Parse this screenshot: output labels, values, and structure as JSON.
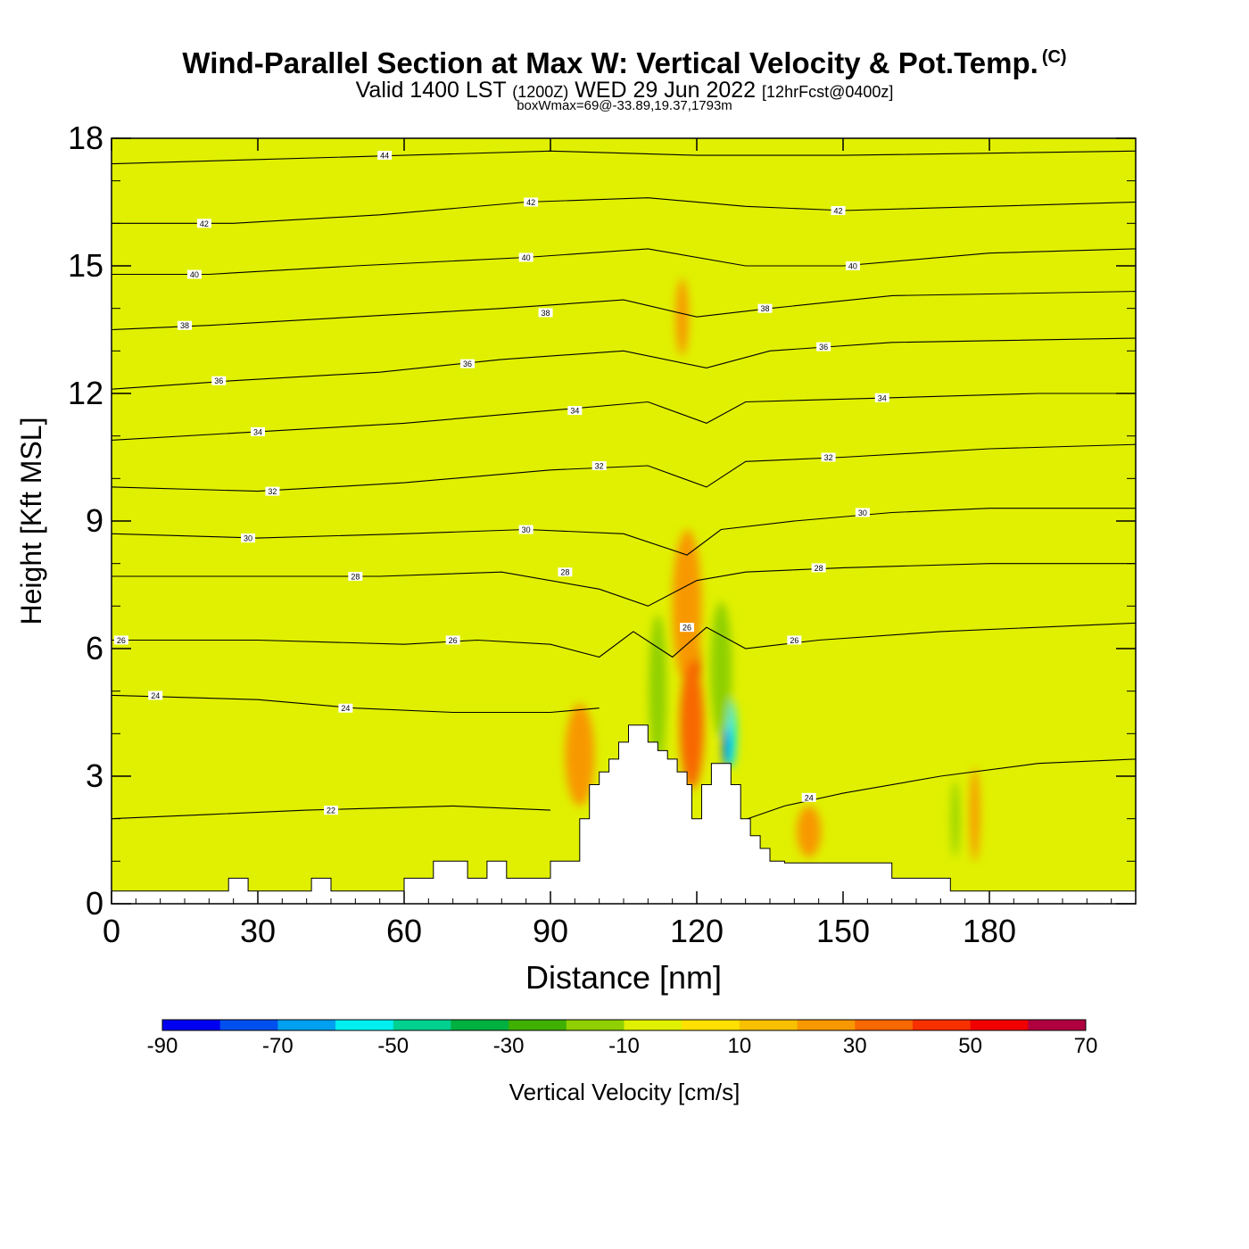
{
  "header": {
    "title": "Wind-Parallel Section at Max W: Vertical Velocity & Pot.Temp.",
    "copyright": "(C)",
    "valid_prefix": "Valid 1400 LST",
    "valid_utc": "(1200Z)",
    "valid_date": "WED 29 Jun 2022",
    "forecast": "[12hrFcst@0400z]",
    "box_info": "boxWmax=69@-33.89,19.37,1793m"
  },
  "colors": {
    "background": "#e0f000",
    "terrain": "#ffffff",
    "contour": "#000000"
  },
  "chart_data": {
    "type": "heatmap",
    "xlabel": "Distance [nm]",
    "ylabel": "Height [Kft MSL]",
    "xlim": [
      0,
      210
    ],
    "ylim": [
      0,
      18
    ],
    "xticks": [
      0,
      30,
      60,
      90,
      120,
      150,
      180
    ],
    "yticks": [
      0,
      3,
      6,
      9,
      12,
      15,
      18
    ],
    "legend": {
      "label": "Vertical Velocity [cm/s]",
      "levels": [
        -90,
        -80,
        -70,
        -60,
        -50,
        -40,
        -30,
        -20,
        -10,
        0,
        10,
        20,
        30,
        40,
        50,
        60,
        70
      ],
      "tick_labels": [
        "-90",
        "-70",
        "-50",
        "-30",
        "-10",
        "10",
        "30",
        "50",
        "70"
      ],
      "colors": [
        "#0000f0",
        "#0050f0",
        "#00a0f0",
        "#00f0f0",
        "#00d090",
        "#00b040",
        "#40b000",
        "#90d000",
        "#e0f000",
        "#ffe000",
        "#f8c000",
        "#f89800",
        "#f86800",
        "#f83000",
        "#f00000",
        "#b00040"
      ]
    },
    "terrain_kft": [
      [
        0,
        0.3
      ],
      [
        24,
        0.3
      ],
      [
        24,
        0.6
      ],
      [
        28,
        0.6
      ],
      [
        28,
        0.3
      ],
      [
        41,
        0.3
      ],
      [
        41,
        0.6
      ],
      [
        45,
        0.6
      ],
      [
        45,
        0.3
      ],
      [
        60,
        0.3
      ],
      [
        60,
        0.6
      ],
      [
        66,
        0.6
      ],
      [
        66,
        1.0
      ],
      [
        73,
        1.0
      ],
      [
        73,
        0.6
      ],
      [
        77,
        0.6
      ],
      [
        77,
        1.0
      ],
      [
        81,
        1.0
      ],
      [
        81,
        0.6
      ],
      [
        90,
        0.6
      ],
      [
        90,
        1.0
      ],
      [
        96,
        1.0
      ],
      [
        96,
        2.0
      ],
      [
        98,
        2.0
      ],
      [
        98,
        2.8
      ],
      [
        100,
        2.8
      ],
      [
        100,
        3.1
      ],
      [
        102,
        3.1
      ],
      [
        102,
        3.4
      ],
      [
        104,
        3.4
      ],
      [
        104,
        3.8
      ],
      [
        106,
        3.8
      ],
      [
        106,
        4.2
      ],
      [
        110,
        4.2
      ],
      [
        110,
        3.8
      ],
      [
        112,
        3.8
      ],
      [
        112,
        3.6
      ],
      [
        114,
        3.6
      ],
      [
        114,
        3.4
      ],
      [
        116,
        3.4
      ],
      [
        116,
        3.1
      ],
      [
        118,
        3.1
      ],
      [
        118,
        2.8
      ],
      [
        119,
        2.8
      ],
      [
        119,
        2.0
      ],
      [
        121,
        2.0
      ],
      [
        121,
        2.8
      ],
      [
        123,
        2.8
      ],
      [
        123,
        3.3
      ],
      [
        127,
        3.3
      ],
      [
        127,
        2.8
      ],
      [
        129,
        2.8
      ],
      [
        129,
        2.0
      ],
      [
        131,
        2.0
      ],
      [
        131,
        1.6
      ],
      [
        133,
        1.6
      ],
      [
        133,
        1.3
      ],
      [
        135,
        1.3
      ],
      [
        135,
        1.0
      ],
      [
        138,
        1.0
      ],
      [
        138,
        0.96
      ],
      [
        160,
        0.96
      ],
      [
        160,
        0.6
      ],
      [
        172,
        0.6
      ],
      [
        172,
        0.3
      ],
      [
        210,
        0.3
      ]
    ],
    "theta_contours": [
      {
        "label": "22",
        "pts": [
          [
            0,
            2.0
          ],
          [
            20,
            2.1
          ],
          [
            40,
            2.2
          ],
          [
            70,
            2.3
          ],
          [
            90,
            2.2
          ]
        ],
        "labels_at": [
          [
            45,
            2.2
          ]
        ]
      },
      {
        "label": "24",
        "pts": [
          [
            0,
            4.9
          ],
          [
            30,
            4.8
          ],
          [
            50,
            4.6
          ],
          [
            70,
            4.5
          ],
          [
            90,
            4.5
          ],
          [
            100,
            4.6
          ]
        ],
        "labels_at": [
          [
            9,
            4.9
          ],
          [
            48,
            4.6
          ]
        ]
      },
      {
        "label": "24",
        "pts": [
          [
            128,
            1.9
          ],
          [
            138,
            2.3
          ],
          [
            150,
            2.6
          ],
          [
            170,
            3.0
          ],
          [
            190,
            3.3
          ],
          [
            210,
            3.4
          ]
        ],
        "labels_at": [
          [
            143,
            2.5
          ]
        ]
      },
      {
        "label": "26",
        "pts": [
          [
            0,
            6.2
          ],
          [
            30,
            6.2
          ],
          [
            60,
            6.1
          ],
          [
            75,
            6.2
          ],
          [
            90,
            6.1
          ],
          [
            100,
            5.8
          ],
          [
            107,
            6.4
          ],
          [
            115,
            5.8
          ],
          [
            122,
            6.5
          ],
          [
            130,
            6.0
          ],
          [
            145,
            6.2
          ],
          [
            170,
            6.4
          ],
          [
            210,
            6.6
          ]
        ],
        "labels_at": [
          [
            2,
            6.2
          ],
          [
            70,
            6.2
          ],
          [
            118,
            6.5
          ],
          [
            140,
            6.2
          ]
        ]
      },
      {
        "label": "28",
        "pts": [
          [
            0,
            7.7
          ],
          [
            30,
            7.7
          ],
          [
            55,
            7.7
          ],
          [
            80,
            7.8
          ],
          [
            100,
            7.4
          ],
          [
            110,
            7.0
          ],
          [
            120,
            7.6
          ],
          [
            130,
            7.8
          ],
          [
            150,
            7.9
          ],
          [
            180,
            8.0
          ],
          [
            210,
            8.0
          ]
        ],
        "labels_at": [
          [
            50,
            7.7
          ],
          [
            93,
            7.8
          ],
          [
            145,
            7.9
          ]
        ]
      },
      {
        "label": "30",
        "pts": [
          [
            0,
            8.7
          ],
          [
            30,
            8.6
          ],
          [
            60,
            8.7
          ],
          [
            85,
            8.8
          ],
          [
            105,
            8.7
          ],
          [
            118,
            8.2
          ],
          [
            125,
            8.8
          ],
          [
            140,
            9.0
          ],
          [
            160,
            9.2
          ],
          [
            180,
            9.3
          ],
          [
            210,
            9.3
          ]
        ],
        "labels_at": [
          [
            28,
            8.6
          ],
          [
            85,
            8.8
          ],
          [
            154,
            9.2
          ]
        ]
      },
      {
        "label": "32",
        "pts": [
          [
            0,
            9.8
          ],
          [
            30,
            9.7
          ],
          [
            60,
            9.9
          ],
          [
            90,
            10.2
          ],
          [
            110,
            10.3
          ],
          [
            122,
            9.8
          ],
          [
            130,
            10.4
          ],
          [
            150,
            10.5
          ],
          [
            180,
            10.7
          ],
          [
            210,
            10.8
          ]
        ],
        "labels_at": [
          [
            33,
            9.7
          ],
          [
            100,
            10.3
          ],
          [
            147,
            10.5
          ]
        ]
      },
      {
        "label": "34",
        "pts": [
          [
            0,
            10.9
          ],
          [
            30,
            11.1
          ],
          [
            60,
            11.3
          ],
          [
            90,
            11.6
          ],
          [
            110,
            11.8
          ],
          [
            122,
            11.3
          ],
          [
            130,
            11.8
          ],
          [
            160,
            11.9
          ],
          [
            190,
            12.0
          ],
          [
            210,
            12.0
          ]
        ],
        "labels_at": [
          [
            30,
            11.1
          ],
          [
            95,
            11.6
          ],
          [
            158,
            11.9
          ]
        ]
      },
      {
        "label": "36",
        "pts": [
          [
            0,
            12.1
          ],
          [
            25,
            12.3
          ],
          [
            55,
            12.5
          ],
          [
            80,
            12.8
          ],
          [
            105,
            13.0
          ],
          [
            122,
            12.6
          ],
          [
            135,
            13.0
          ],
          [
            160,
            13.2
          ],
          [
            210,
            13.3
          ]
        ],
        "labels_at": [
          [
            22,
            12.3
          ],
          [
            73,
            12.7
          ],
          [
            146,
            13.1
          ]
        ]
      },
      {
        "label": "38",
        "pts": [
          [
            0,
            13.5
          ],
          [
            20,
            13.6
          ],
          [
            50,
            13.8
          ],
          [
            80,
            14.0
          ],
          [
            105,
            14.2
          ],
          [
            120,
            13.8
          ],
          [
            135,
            14.0
          ],
          [
            160,
            14.3
          ],
          [
            210,
            14.4
          ]
        ],
        "labels_at": [
          [
            15,
            13.6
          ],
          [
            89,
            13.9
          ],
          [
            134,
            14.0
          ]
        ]
      },
      {
        "label": "40",
        "pts": [
          [
            0,
            14.8
          ],
          [
            20,
            14.8
          ],
          [
            50,
            15.0
          ],
          [
            85,
            15.2
          ],
          [
            110,
            15.4
          ],
          [
            130,
            15.0
          ],
          [
            150,
            15.0
          ],
          [
            180,
            15.3
          ],
          [
            210,
            15.4
          ]
        ],
        "labels_at": [
          [
            17,
            14.8
          ],
          [
            85,
            15.2
          ],
          [
            152,
            15.0
          ]
        ]
      },
      {
        "label": "42",
        "pts": [
          [
            0,
            16.0
          ],
          [
            25,
            16.0
          ],
          [
            55,
            16.2
          ],
          [
            85,
            16.5
          ],
          [
            110,
            16.6
          ],
          [
            130,
            16.4
          ],
          [
            150,
            16.3
          ],
          [
            180,
            16.4
          ],
          [
            210,
            16.5
          ]
        ],
        "labels_at": [
          [
            19,
            16.0
          ],
          [
            86,
            16.5
          ],
          [
            149,
            16.3
          ]
        ]
      },
      {
        "label": "44",
        "pts": [
          [
            0,
            17.4
          ],
          [
            30,
            17.5
          ],
          [
            60,
            17.6
          ],
          [
            90,
            17.7
          ],
          [
            120,
            17.6
          ],
          [
            150,
            17.6
          ],
          [
            210,
            17.7
          ]
        ],
        "labels_at": [
          [
            56,
            17.6
          ]
        ]
      }
    ],
    "velocity_features": [
      {
        "x": 119,
        "y": 5.4,
        "rx": 1.8,
        "ry": 1.4,
        "value": 50
      },
      {
        "x": 118,
        "y": 6.6,
        "rx": 2.0,
        "ry": 1.1,
        "value": 40
      },
      {
        "x": 117,
        "y": 13.8,
        "rx": 1.3,
        "ry": 0.9,
        "value": 20
      },
      {
        "x": 118,
        "y": 7.0,
        "rx": 3.0,
        "ry": 1.8,
        "value": 20
      },
      {
        "x": 119,
        "y": 4.2,
        "rx": 2.5,
        "ry": 1.5,
        "value": 30
      },
      {
        "x": 96,
        "y": 3.5,
        "rx": 3.0,
        "ry": 1.2,
        "value": 20
      },
      {
        "x": 143,
        "y": 1.7,
        "rx": 2.5,
        "ry": 0.6,
        "value": 20
      },
      {
        "x": 177,
        "y": 2.1,
        "rx": 1.0,
        "ry": 1.1,
        "value": 20
      },
      {
        "x": 127,
        "y": 4.0,
        "rx": 1.1,
        "ry": 0.8,
        "value": -60
      },
      {
        "x": 126,
        "y": 3.7,
        "rx": 0.6,
        "ry": 0.5,
        "value": -80
      },
      {
        "x": 125,
        "y": 5.5,
        "rx": 2.2,
        "ry": 1.6,
        "value": -20
      },
      {
        "x": 112,
        "y": 5.0,
        "rx": 1.8,
        "ry": 1.8,
        "value": -20
      },
      {
        "x": 116,
        "y": 10.5,
        "rx": 1.5,
        "ry": 2.0,
        "value": -10
      },
      {
        "x": 173,
        "y": 2.0,
        "rx": 0.8,
        "ry": 0.9,
        "value": -20
      }
    ]
  }
}
